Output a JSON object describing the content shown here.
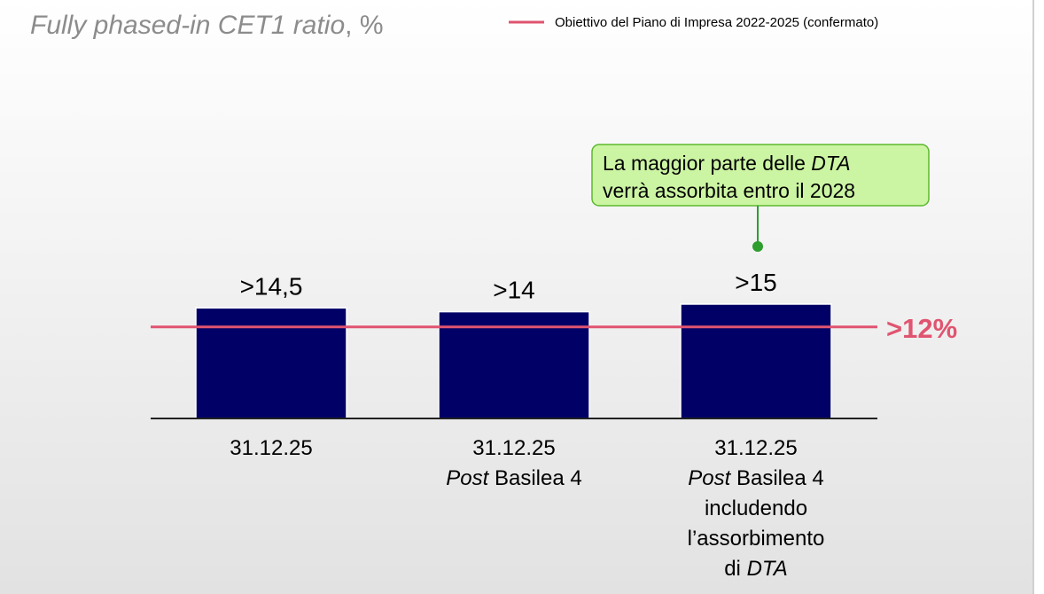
{
  "chart_data": {
    "type": "bar",
    "title": [
      {
        "text": "Fully phased-in CET1 ratio",
        "italic": true
      },
      {
        "text": ", %"
      }
    ],
    "categories": [
      [
        [
          {
            "text": "31.12.25"
          }
        ]
      ],
      [
        [
          {
            "text": "31.12.25"
          }
        ],
        [
          {
            "text": "Post",
            "italic": true
          },
          {
            "text": " Basilea 4"
          }
        ]
      ],
      [
        [
          {
            "text": "31.12.25"
          }
        ],
        [
          {
            "text": "Post",
            "italic": true
          },
          {
            "text": " Basilea 4"
          }
        ],
        [
          {
            "text": "includendo"
          }
        ],
        [
          {
            "text": "l’assorbimento"
          }
        ],
        [
          {
            "text": "di "
          },
          {
            "text": "DTA",
            "italic": true
          }
        ]
      ]
    ],
    "values": [
      14.5,
      14,
      15
    ],
    "value_labels": [
      ">14,5",
      ">14",
      ">15"
    ],
    "color": "#000066",
    "ylim": [
      0,
      50
    ],
    "target": {
      "name": "Obiettivo del Piano di Impresa 2022-2025 (confermato)",
      "value": 12,
      "label": ">12%",
      "color": "#e05470"
    },
    "annotation": [
      [
        {
          "text": "La maggior parte delle "
        },
        {
          "text": "DTA",
          "italic": true
        }
      ],
      [
        {
          "text": "verrà assorbita entro il 2028"
        }
      ]
    ]
  }
}
